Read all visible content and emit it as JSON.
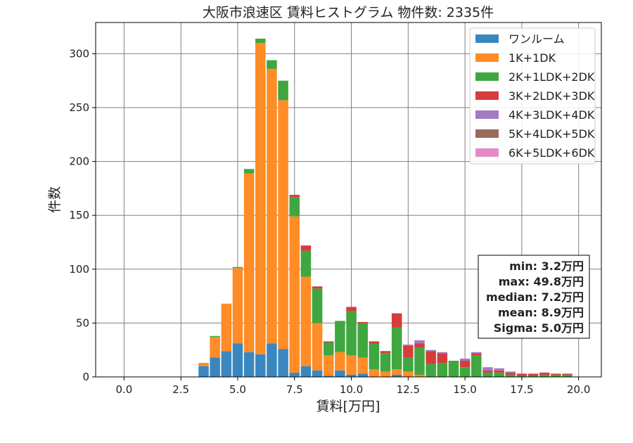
{
  "chart_data": {
    "type": "bar",
    "stacked": true,
    "title": "大阪市浪速区 賃料ヒストグラム 物件数: 2335件",
    "xlabel": "賃料[万円]",
    "ylabel": "件数",
    "xlim": [
      -1.25,
      21.0
    ],
    "ylim": [
      0,
      329
    ],
    "x_ticks": [
      0.0,
      2.5,
      5.0,
      7.5,
      10.0,
      12.5,
      15.0,
      17.5,
      20.0
    ],
    "x_tick_labels": [
      "0.0",
      "2.5",
      "5.0",
      "7.5",
      "10.0",
      "12.5",
      "15.0",
      "17.5",
      "20.0"
    ],
    "y_ticks": [
      0,
      50,
      100,
      150,
      200,
      250,
      300
    ],
    "y_tick_labels": [
      "0",
      "50",
      "100",
      "150",
      "200",
      "250",
      "300"
    ],
    "grid": true,
    "legend_position": "top-right",
    "bin_width": 0.5,
    "bins": [
      3.5,
      4.0,
      4.5,
      5.0,
      5.5,
      6.0,
      6.5,
      7.0,
      7.5,
      8.0,
      8.5,
      9.0,
      9.5,
      10.0,
      10.5,
      11.0,
      11.5,
      12.0,
      12.5,
      13.0,
      13.5,
      14.0,
      14.5,
      15.0,
      15.5,
      16.0,
      16.5,
      17.0,
      17.5,
      18.0,
      18.5,
      19.0,
      19.5
    ],
    "series": [
      {
        "name": "ワンルーム",
        "color": "#3a87c0",
        "values": [
          10,
          18,
          24,
          31,
          23,
          21,
          31,
          26,
          4,
          10,
          6,
          1,
          6,
          2,
          3,
          0,
          0,
          2,
          0,
          0,
          0,
          0,
          0,
          0,
          0,
          0,
          0,
          0,
          0,
          0,
          0,
          0,
          0
        ]
      },
      {
        "name": "1K+1DK",
        "color": "#ff8c26",
        "values": [
          3,
          19,
          44,
          70,
          166,
          289,
          255,
          231,
          145,
          83,
          44,
          19,
          17,
          18,
          15,
          7,
          5,
          5,
          5,
          2,
          0,
          0,
          0,
          0,
          0,
          0,
          0,
          0,
          0,
          0,
          0,
          0,
          0
        ]
      },
      {
        "name": "2K+1LDK+2DK",
        "color": "#40a640",
        "values": [
          0,
          1,
          0,
          1,
          4,
          4,
          8,
          18,
          18,
          24,
          32,
          12,
          29,
          41,
          32,
          24,
          17,
          39,
          13,
          25,
          12,
          13,
          15,
          9,
          20,
          4,
          4,
          2,
          1,
          1,
          2,
          2,
          2
        ]
      },
      {
        "name": "3K+2LDK+3DK",
        "color": "#d63c3c",
        "values": [
          0,
          0,
          0,
          0,
          0,
          0,
          0,
          0,
          2,
          5,
          2,
          1,
          0,
          4,
          1,
          2,
          2,
          13,
          11,
          4,
          12,
          9,
          0,
          6,
          2,
          2,
          2,
          2,
          2,
          2,
          2,
          1,
          1
        ]
      },
      {
        "name": "4K+3LDK+4DK",
        "color": "#a07cc5",
        "values": [
          0,
          0,
          0,
          0,
          0,
          0,
          0,
          0,
          0,
          0,
          0,
          0,
          0,
          0,
          0,
          0,
          0,
          0,
          1,
          3,
          1,
          1,
          0,
          2,
          1,
          3,
          2,
          1,
          0,
          0,
          0,
          0,
          0
        ]
      },
      {
        "name": "5K+4LDK+5DK",
        "color": "#9b6a5e",
        "values": [
          0,
          0,
          0,
          0,
          0,
          0,
          0,
          0,
          0,
          0,
          0,
          0,
          0,
          0,
          0,
          0,
          0,
          0,
          0,
          0,
          0,
          0,
          0,
          0,
          0,
          0,
          0,
          0,
          0,
          0,
          0,
          0,
          0
        ]
      },
      {
        "name": "6K+5LDK+6DK",
        "color": "#e58ac9",
        "values": [
          0,
          0,
          0,
          0,
          0,
          0,
          0,
          0,
          0,
          0,
          0,
          0,
          0,
          0,
          0,
          0,
          0,
          0,
          0,
          0,
          0,
          0,
          0,
          0,
          0,
          0,
          0,
          0,
          0,
          0,
          0,
          0,
          0
        ]
      }
    ],
    "stats_box": [
      "min: 3.2万円",
      "max: 49.8万円",
      "median: 7.2万円",
      "mean: 8.9万円",
      "Sigma: 5.0万円"
    ]
  }
}
